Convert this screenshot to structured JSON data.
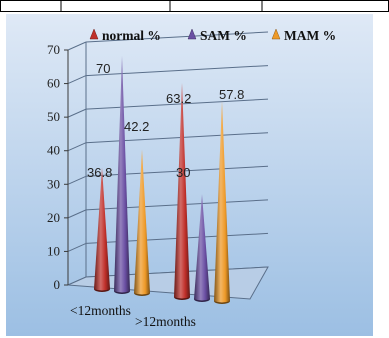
{
  "chart_data": {
    "type": "bar",
    "style": "3d-cone",
    "categories": [
      "<12months",
      ">12months"
    ],
    "series": [
      {
        "name": "normal %",
        "values": [
          36.8,
          63.2
        ],
        "color": "#c0302a"
      },
      {
        "name": "SAM %",
        "values": [
          70,
          30
        ],
        "color": "#6a4fa3"
      },
      {
        "name": "MAM %",
        "values": [
          42.2,
          57.8
        ],
        "color": "#ee9a28"
      }
    ],
    "data_labels": [
      "36.8",
      "70",
      "42.2",
      "63.2",
      "30",
      "57.8"
    ],
    "ylim": [
      0,
      70
    ],
    "yticks": [
      0,
      10,
      20,
      30,
      40,
      50,
      60,
      70
    ],
    "grid": true,
    "legend_position": "top",
    "background_gradient": [
      "#dfe9f6",
      "#9cbfe3"
    ]
  }
}
